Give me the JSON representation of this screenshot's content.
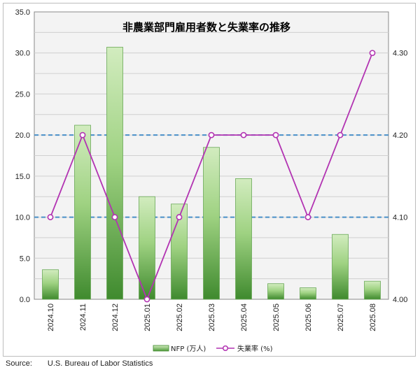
{
  "chart_data": {
    "type": "bar+line",
    "title": "非農業部門雇用者数と失業率の推移",
    "categories": [
      "2024.10",
      "2024.11",
      "2024.12",
      "2025.01",
      "2025.02",
      "2025.03",
      "2025.04",
      "2025.05",
      "2025.06",
      "2025.07",
      "2025.08"
    ],
    "series": [
      {
        "name": "NFP (万人)",
        "kind": "bar",
        "axis": "left",
        "values": [
          3.6,
          21.2,
          30.7,
          12.5,
          11.6,
          18.5,
          14.7,
          1.9,
          1.4,
          7.9,
          2.2
        ],
        "color": "#5da446"
      },
      {
        "name": "失業率 (%)",
        "kind": "line",
        "axis": "right",
        "values": [
          4.1,
          4.2,
          4.1,
          4.0,
          4.1,
          4.2,
          4.2,
          4.2,
          4.1,
          4.2,
          4.3
        ],
        "color": "#b233b2"
      }
    ],
    "y_left": {
      "min": 0,
      "max": 35,
      "step": 5,
      "ticks": [
        "0.0",
        "5.0",
        "10.0",
        "15.0",
        "20.0",
        "25.0",
        "30.0",
        "35.0"
      ]
    },
    "y_right": {
      "min": 4.0,
      "max": 4.35,
      "ticks": [
        "4.00",
        "4.10",
        "4.20",
        "4.30"
      ],
      "tick_values": [
        4.0,
        4.1,
        4.2,
        4.3
      ]
    },
    "reference_lines_left": [
      10,
      20
    ],
    "grid": true,
    "legend": "bottom-center",
    "colors": {
      "bar_dark": "#3f8a2e",
      "bar_light": "#c4e6b0",
      "line": "#b233b2",
      "ref_line": "#4a90c8",
      "grid": "#d0d0d0"
    }
  },
  "source": {
    "label": "Source:",
    "text": "U.S. Bureau of Labor Statistics"
  }
}
